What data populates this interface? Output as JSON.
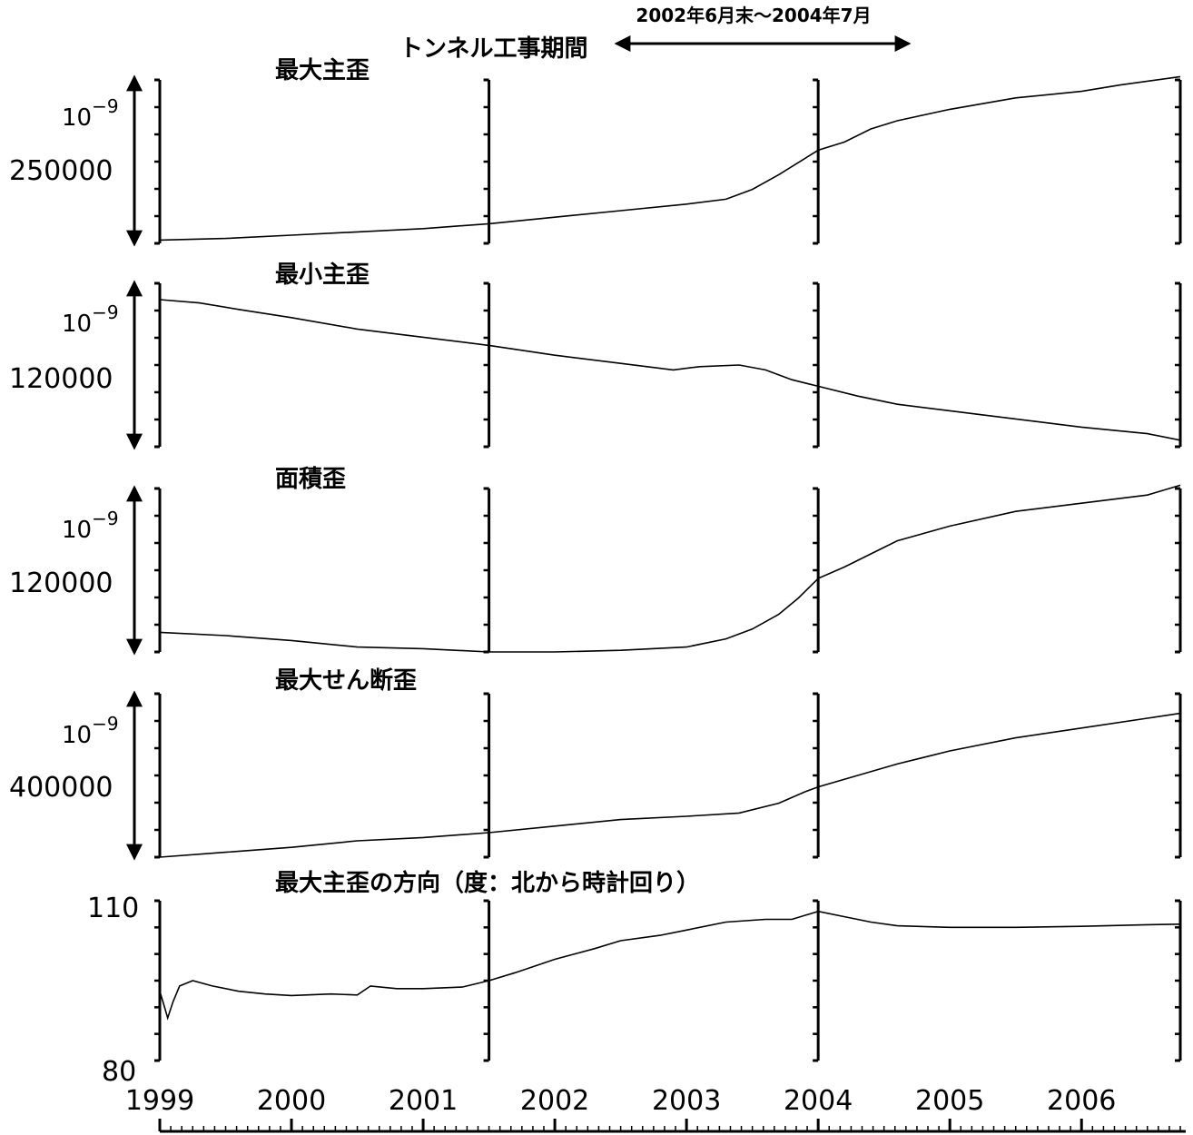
{
  "chart_data": {
    "type": "line",
    "x_range": [
      1999.0,
      2006.75
    ],
    "x_ticks": [
      "1999",
      "2000",
      "2001",
      "2002",
      "2003",
      "2004",
      "2005",
      "2006"
    ],
    "tunnel_label": "トンネル工事期間",
    "tunnel_period_label": "2002年6月末～2004年7月",
    "tunnel_period": [
      2002.5,
      2004.58
    ],
    "colors": {
      "line": "#000000",
      "axis": "#000000",
      "background": "#ffffff"
    },
    "panels": [
      {
        "title": "最大主歪",
        "unit": "10",
        "unit_exp": "−9",
        "scale": "250000",
        "points": [
          [
            1999.0,
            0.02
          ],
          [
            1999.5,
            0.03
          ],
          [
            2000.0,
            0.05
          ],
          [
            2000.5,
            0.07
          ],
          [
            2001.0,
            0.09
          ],
          [
            2001.5,
            0.12
          ],
          [
            2002.0,
            0.16
          ],
          [
            2002.5,
            0.2
          ],
          [
            2003.0,
            0.24
          ],
          [
            2003.3,
            0.27
          ],
          [
            2003.5,
            0.33
          ],
          [
            2003.7,
            0.42
          ],
          [
            2003.9,
            0.52
          ],
          [
            2004.0,
            0.57
          ],
          [
            2004.2,
            0.62
          ],
          [
            2004.4,
            0.7
          ],
          [
            2004.6,
            0.75
          ],
          [
            2005.0,
            0.82
          ],
          [
            2005.5,
            0.89
          ],
          [
            2006.0,
            0.93
          ],
          [
            2006.3,
            0.97
          ],
          [
            2006.75,
            1.02
          ]
        ]
      },
      {
        "title": "最小主歪",
        "unit": "10",
        "unit_exp": "−9",
        "scale": "120000",
        "points": [
          [
            1999.0,
            0.9
          ],
          [
            1999.3,
            0.88
          ],
          [
            1999.6,
            0.84
          ],
          [
            2000.0,
            0.79
          ],
          [
            2000.5,
            0.72
          ],
          [
            2001.0,
            0.67
          ],
          [
            2001.5,
            0.62
          ],
          [
            2002.0,
            0.56
          ],
          [
            2002.5,
            0.51
          ],
          [
            2002.9,
            0.47
          ],
          [
            2003.1,
            0.49
          ],
          [
            2003.4,
            0.5
          ],
          [
            2003.6,
            0.47
          ],
          [
            2003.8,
            0.41
          ],
          [
            2004.0,
            0.37
          ],
          [
            2004.3,
            0.31
          ],
          [
            2004.6,
            0.26
          ],
          [
            2005.0,
            0.22
          ],
          [
            2005.5,
            0.17
          ],
          [
            2006.0,
            0.12
          ],
          [
            2006.5,
            0.08
          ],
          [
            2006.75,
            0.04
          ]
        ]
      },
      {
        "title": "面積歪",
        "unit": "10",
        "unit_exp": "−9",
        "scale": "120000",
        "points": [
          [
            1999.0,
            0.12
          ],
          [
            1999.5,
            0.1
          ],
          [
            2000.0,
            0.07
          ],
          [
            2000.5,
            0.03
          ],
          [
            2001.0,
            0.02
          ],
          [
            2001.5,
            0.0
          ],
          [
            2002.0,
            0.0
          ],
          [
            2002.5,
            0.01
          ],
          [
            2003.0,
            0.03
          ],
          [
            2003.3,
            0.08
          ],
          [
            2003.5,
            0.14
          ],
          [
            2003.7,
            0.23
          ],
          [
            2003.85,
            0.33
          ],
          [
            2004.0,
            0.45
          ],
          [
            2004.2,
            0.52
          ],
          [
            2004.35,
            0.58
          ],
          [
            2004.6,
            0.68
          ],
          [
            2005.0,
            0.77
          ],
          [
            2005.5,
            0.86
          ],
          [
            2006.0,
            0.91
          ],
          [
            2006.5,
            0.96
          ],
          [
            2006.75,
            1.02
          ]
        ]
      },
      {
        "title": "最大せん断歪",
        "unit": "10",
        "unit_exp": "−9",
        "scale": "400000",
        "points": [
          [
            1999.0,
            0.0
          ],
          [
            1999.5,
            0.03
          ],
          [
            2000.0,
            0.06
          ],
          [
            2000.5,
            0.1
          ],
          [
            2001.0,
            0.12
          ],
          [
            2001.5,
            0.15
          ],
          [
            2002.0,
            0.19
          ],
          [
            2002.5,
            0.23
          ],
          [
            2003.0,
            0.25
          ],
          [
            2003.4,
            0.27
          ],
          [
            2003.7,
            0.33
          ],
          [
            2003.9,
            0.4
          ],
          [
            2004.0,
            0.43
          ],
          [
            2004.3,
            0.5
          ],
          [
            2004.6,
            0.57
          ],
          [
            2005.0,
            0.65
          ],
          [
            2005.5,
            0.73
          ],
          [
            2006.0,
            0.79
          ],
          [
            2006.5,
            0.85
          ],
          [
            2006.75,
            0.88
          ]
        ]
      },
      {
        "title": "最大主歪の方向（度：北から時計回り）",
        "ylim": [
          80,
          110
        ],
        "y_ticks": [
          "110",
          "80"
        ],
        "points": [
          [
            1999.0,
            93
          ],
          [
            1999.03,
            90.5
          ],
          [
            1999.06,
            88
          ],
          [
            1999.1,
            91
          ],
          [
            1999.15,
            94
          ],
          [
            1999.25,
            95
          ],
          [
            1999.4,
            94
          ],
          [
            1999.6,
            93
          ],
          [
            1999.8,
            92.5
          ],
          [
            2000.0,
            92.2
          ],
          [
            2000.3,
            92.5
          ],
          [
            2000.5,
            92.3
          ],
          [
            2000.6,
            94
          ],
          [
            2000.8,
            93.5
          ],
          [
            2001.0,
            93.5
          ],
          [
            2001.3,
            93.8
          ],
          [
            2001.5,
            95
          ],
          [
            2001.7,
            96.5
          ],
          [
            2002.0,
            99
          ],
          [
            2002.3,
            101
          ],
          [
            2002.5,
            102.5
          ],
          [
            2002.8,
            103.5
          ],
          [
            2003.0,
            104.5
          ],
          [
            2003.3,
            106
          ],
          [
            2003.6,
            106.5
          ],
          [
            2003.8,
            106.5
          ],
          [
            2004.0,
            108
          ],
          [
            2004.2,
            107
          ],
          [
            2004.4,
            106
          ],
          [
            2004.6,
            105.3
          ],
          [
            2005.0,
            105
          ],
          [
            2005.5,
            105
          ],
          [
            2006.0,
            105.2
          ],
          [
            2006.5,
            105.5
          ],
          [
            2006.75,
            105.6
          ]
        ]
      }
    ]
  }
}
